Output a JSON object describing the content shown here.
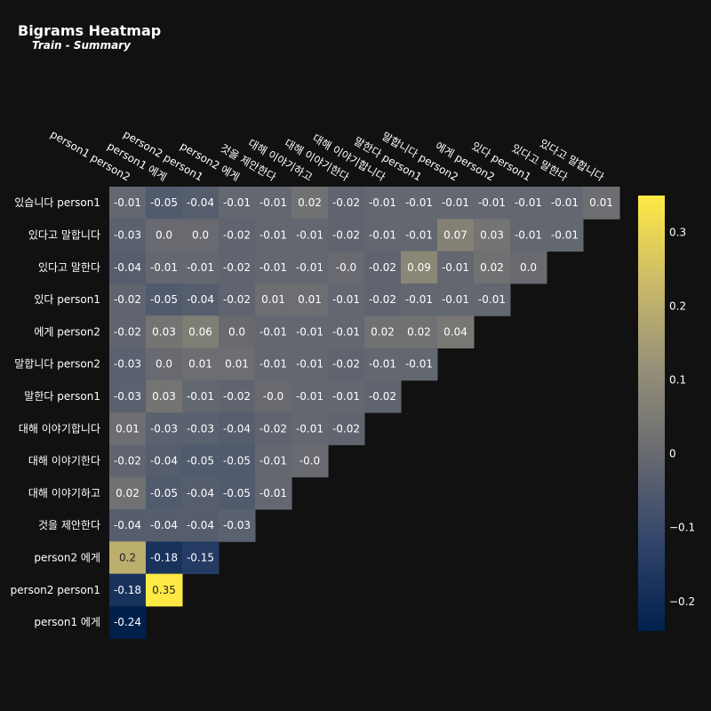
{
  "header": {
    "title": "Bigrams Heatmap",
    "subtitle": "Train - Summary"
  },
  "colors": {
    "background": "#111111",
    "text": "#ffffff",
    "scale": [
      "#00204c",
      "#31446b",
      "#666970",
      "#958f78",
      "#cbba69",
      "#ffe945"
    ]
  },
  "chart_data": {
    "type": "heatmap",
    "x_labels": [
      "person1 person2",
      "person1 에게",
      "person2 person1",
      "person2 에게",
      "것을 제안한다",
      "대해 이야기하고",
      "대해 이야기한다",
      "대해 이야기합니다",
      "말한다 person1",
      "말합니다 person2",
      "에게 person2",
      "있다 person1",
      "있다고 말한다",
      "있다고 말합니다"
    ],
    "y_labels": [
      "있습니다 person1",
      "있다고 말합니다",
      "있다고 말한다",
      "있다 person1",
      "에게 person2",
      "말합니다 person2",
      "말한다 person1",
      "대해 이야기합니다",
      "대해 이야기한다",
      "대해 이야기하고",
      "것을 제안한다",
      "person2 에게",
      "person2 person1",
      "person1 에게"
    ],
    "values": [
      [
        "-0.01",
        "-0.05",
        "-0.04",
        "-0.01",
        "-0.01",
        "0.02",
        "-0.02",
        "-0.01",
        "-0.01",
        "-0.01",
        "-0.01",
        "-0.01",
        "-0.01",
        "0.01"
      ],
      [
        "-0.03",
        "0.0",
        "0.0",
        "-0.02",
        "-0.01",
        "-0.01",
        "-0.02",
        "-0.01",
        "-0.01",
        "0.07",
        "0.03",
        "-0.01",
        "-0.01"
      ],
      [
        "-0.04",
        "-0.01",
        "-0.01",
        "-0.02",
        "-0.01",
        "-0.01",
        "-0.0",
        "-0.02",
        "0.09",
        "-0.01",
        "0.02",
        "0.0"
      ],
      [
        "-0.02",
        "-0.05",
        "-0.04",
        "-0.02",
        "0.01",
        "0.01",
        "-0.01",
        "-0.02",
        "-0.01",
        "-0.01",
        "-0.01"
      ],
      [
        "-0.02",
        "0.03",
        "0.06",
        "0.0",
        "-0.01",
        "-0.01",
        "-0.01",
        "0.02",
        "0.02",
        "0.04"
      ],
      [
        "-0.03",
        "0.0",
        "0.01",
        "0.01",
        "-0.01",
        "-0.01",
        "-0.02",
        "-0.01",
        "-0.01"
      ],
      [
        "-0.03",
        "0.03",
        "-0.01",
        "-0.02",
        "-0.0",
        "-0.01",
        "-0.01",
        "-0.02"
      ],
      [
        "0.01",
        "-0.03",
        "-0.03",
        "-0.04",
        "-0.02",
        "-0.01",
        "-0.02"
      ],
      [
        "-0.02",
        "-0.04",
        "-0.05",
        "-0.05",
        "-0.01",
        "-0.0"
      ],
      [
        "0.02",
        "-0.05",
        "-0.04",
        "-0.05",
        "-0.01"
      ],
      [
        "-0.04",
        "-0.04",
        "-0.04",
        "-0.03"
      ],
      [
        "0.2",
        "-0.18",
        "-0.15"
      ],
      [
        "-0.18",
        "0.35"
      ],
      [
        "-0.24"
      ]
    ],
    "zmin": -0.24,
    "zmax": 0.35,
    "colorbar_ticks": [
      "0.3",
      "0.2",
      "0.1",
      "0",
      "−0.1",
      "−0.2"
    ],
    "colorbar_tick_values": [
      0.3,
      0.2,
      0.1,
      0,
      -0.1,
      -0.2
    ],
    "legend_position": "right"
  }
}
